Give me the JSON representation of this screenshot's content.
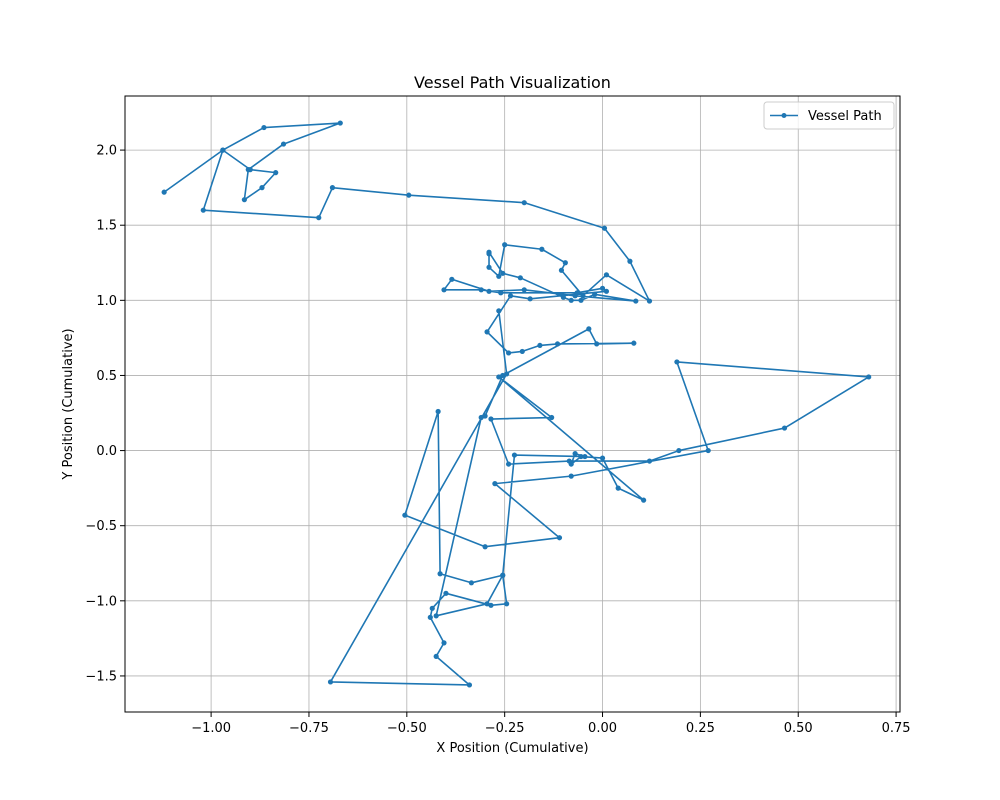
{
  "chart_data": {
    "type": "line",
    "title": "Vessel Path Visualization",
    "xlabel": "X Position (Cumulative)",
    "ylabel": "Y Position (Cumulative)",
    "xlim": [
      -1.22,
      0.76
    ],
    "ylim": [
      -1.74,
      2.36
    ],
    "xticks": [
      -1.0,
      -0.75,
      -0.5,
      -0.25,
      0.0,
      0.25,
      0.5,
      0.75
    ],
    "xtick_labels": [
      "−1.00",
      "−0.75",
      "−0.50",
      "−0.25",
      "0.00",
      "0.25",
      "0.50",
      "0.75"
    ],
    "yticks": [
      -1.5,
      -1.0,
      -0.5,
      0.0,
      0.5,
      1.0,
      1.5,
      2.0
    ],
    "ytick_labels": [
      "−1.5",
      "−1.0",
      "−0.5",
      "0.0",
      "0.5",
      "1.0",
      "1.5",
      "2.0"
    ],
    "grid": true,
    "legend_position": "top-right",
    "color": "#1f77b4",
    "marker": "circle",
    "series": [
      {
        "name": "Vessel Path",
        "x": [
          -1.12,
          -0.97,
          -0.865,
          -0.67,
          -0.815,
          -0.905,
          -0.915,
          -0.87,
          -0.835,
          -0.9,
          -0.97,
          -1.02,
          -0.725,
          -0.69,
          -0.495,
          -0.2,
          0.005,
          0.07,
          0.12,
          0.01,
          -0.05,
          -0.105,
          -0.095,
          -0.155,
          -0.25,
          -0.265,
          -0.29,
          -0.29,
          -0.29,
          -0.255,
          -0.21,
          -0.1,
          -0.08,
          -0.055,
          -0.02,
          0.085,
          -0.07,
          -0.2,
          -0.29,
          -0.385,
          -0.405,
          -0.31,
          -0.26,
          -0.065,
          0.0,
          0.01,
          -0.185,
          -0.235,
          -0.295,
          -0.24,
          -0.205,
          -0.16,
          -0.115,
          0.08,
          -0.015,
          -0.035,
          -0.255,
          -0.3,
          -0.31,
          -0.425,
          -0.295,
          -0.255,
          -0.225,
          -0.045,
          -0.07,
          -0.08,
          -0.055,
          0.0,
          0.04,
          0.105,
          -0.265,
          -0.13,
          -0.285,
          -0.24,
          -0.085,
          0.12,
          0.195,
          0.465,
          0.68,
          0.19,
          0.27,
          -0.08,
          -0.275,
          -0.11,
          -0.3,
          -0.505,
          -0.42,
          -0.415,
          -0.335,
          -0.255,
          -0.245,
          -0.285,
          -0.4,
          -0.435,
          -0.44,
          -0.405,
          -0.425,
          -0.34,
          -0.695,
          -0.245,
          -0.265
        ],
        "y": [
          1.72,
          2.0,
          2.15,
          2.18,
          2.04,
          1.87,
          1.67,
          1.75,
          1.85,
          1.87,
          2.0,
          1.6,
          1.55,
          1.75,
          1.7,
          1.65,
          1.48,
          1.26,
          0.995,
          1.17,
          1.03,
          1.2,
          1.25,
          1.34,
          1.37,
          1.16,
          1.22,
          1.31,
          1.32,
          1.18,
          1.15,
          1.02,
          1.0,
          1.0,
          1.04,
          0.995,
          1.03,
          1.07,
          1.06,
          1.14,
          1.07,
          1.07,
          1.05,
          1.05,
          1.08,
          1.06,
          1.01,
          1.03,
          0.79,
          0.65,
          0.66,
          0.7,
          0.71,
          0.715,
          0.71,
          0.81,
          0.5,
          0.23,
          0.22,
          -1.1,
          -1.02,
          -0.83,
          -0.03,
          -0.04,
          -0.02,
          -0.09,
          -0.04,
          -0.05,
          -0.25,
          -0.33,
          0.49,
          0.22,
          0.21,
          -0.09,
          -0.07,
          -0.07,
          0.0,
          0.15,
          0.49,
          0.59,
          0.0,
          -0.17,
          -0.22,
          -0.58,
          -0.64,
          -0.43,
          0.26,
          -0.82,
          -0.88,
          -0.83,
          -1.02,
          -1.03,
          -0.95,
          -1.05,
          -1.11,
          -1.28,
          -1.37,
          -1.56,
          -1.54,
          0.51,
          0.93
        ]
      }
    ]
  }
}
